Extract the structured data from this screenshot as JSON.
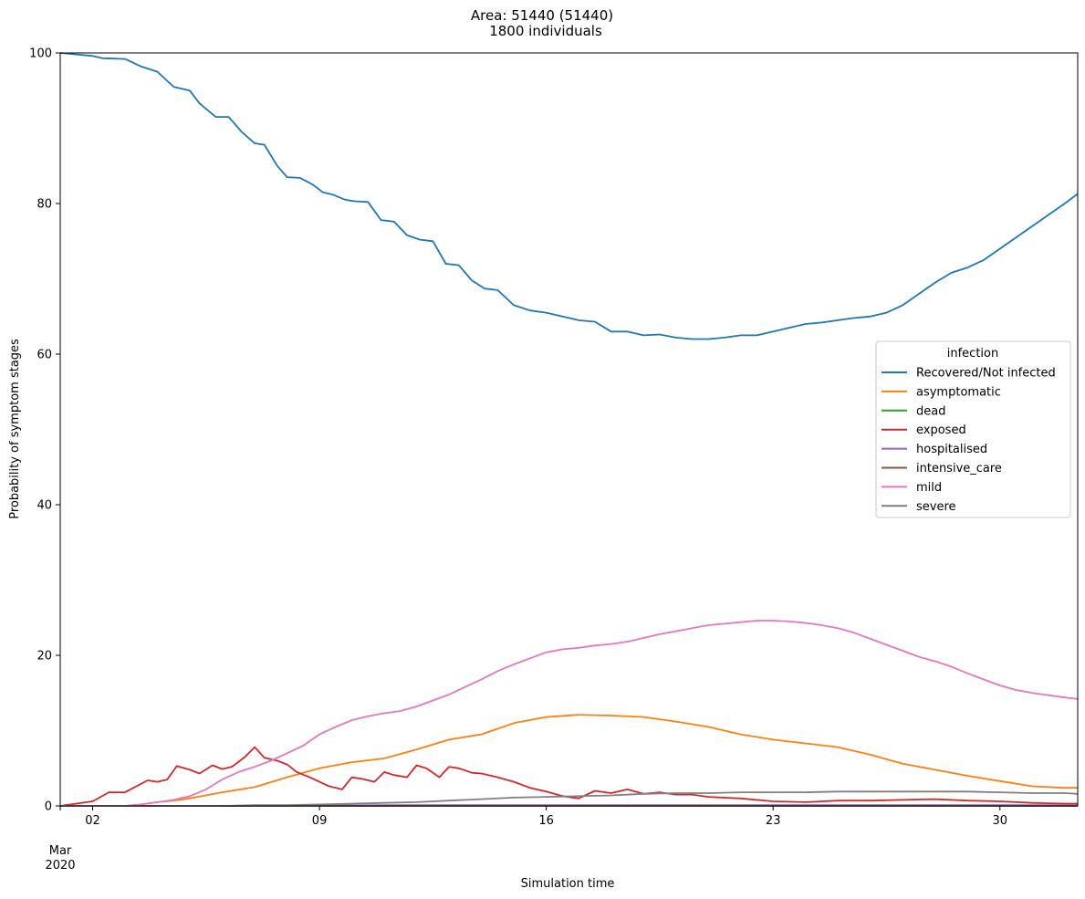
{
  "chart_data": {
    "type": "line",
    "title_line1": "Area: 51440 (51440)",
    "title_line2": "1800 individuals",
    "xlabel": "Simulation time",
    "ylabel": "Probability of symptom stages",
    "xlim": [
      0,
      31.4
    ],
    "ylim": [
      0,
      100
    ],
    "grid": false,
    "legend_placement": "center-right",
    "legend_title": "infection",
    "xtick_values": [
      1,
      8,
      15,
      22,
      29
    ],
    "xtick_labels": [
      "02",
      "09",
      "16",
      "23",
      "30"
    ],
    "xaxis_secondary_label_1": "Mar",
    "xaxis_secondary_label_2": "2020",
    "ytick_values": [
      0,
      20,
      40,
      60,
      80,
      100
    ],
    "ytick_labels": [
      "0",
      "20",
      "40",
      "60",
      "80",
      "100"
    ],
    "x_note": "x values are days elapsed since 01 Mar 2020",
    "series": [
      {
        "name": "Recovered/Not infected",
        "color": "#1f77b4",
        "x": [
          0,
          1,
          1.3,
          2,
          2.5,
          3,
          3.5,
          4,
          4.3,
          4.8,
          5.2,
          5.6,
          6,
          6.3,
          6.7,
          7,
          7.4,
          7.8,
          8.1,
          8.4,
          8.8,
          9.1,
          9.5,
          9.9,
          10.3,
          10.7,
          11.1,
          11.5,
          11.9,
          12.3,
          12.7,
          13.1,
          13.5,
          14,
          14.5,
          15,
          15.5,
          16,
          16.5,
          17,
          17.5,
          18,
          18.5,
          19,
          19.5,
          20,
          20.5,
          21,
          21.5,
          22,
          22.5,
          23,
          23.5,
          24,
          24.5,
          25,
          25.5,
          26,
          26.5,
          27,
          27.5,
          28,
          28.5,
          29,
          29.5,
          30,
          30.5,
          31,
          31.4
        ],
        "y": [
          100,
          99.6,
          99.3,
          99.2,
          98.2,
          97.5,
          95.5,
          95,
          93.3,
          91.5,
          91.5,
          89.5,
          88,
          87.8,
          85,
          83.5,
          83.4,
          82.5,
          81.5,
          81.2,
          80.5,
          80.3,
          80.2,
          77.8,
          77.6,
          75.8,
          75.2,
          75,
          72,
          71.8,
          69.8,
          68.7,
          68.5,
          66.5,
          65.8,
          65.5,
          65,
          64.5,
          64.3,
          63,
          63,
          62.5,
          62.6,
          62.2,
          62,
          62,
          62.2,
          62.5,
          62.5,
          63,
          63.5,
          64,
          64.2,
          64.5,
          64.8,
          65,
          65.5,
          66.5,
          68,
          69.5,
          70.8,
          71.5,
          72.5,
          74,
          75.5,
          77,
          78.5,
          80,
          81.3
        ]
      },
      {
        "name": "asymptomatic",
        "color": "#ff7f0e",
        "x": [
          0,
          1,
          2,
          2.5,
          3,
          3.5,
          4,
          5,
          6,
          7,
          8,
          9,
          10,
          11,
          12,
          13,
          14,
          15,
          16,
          17,
          18,
          19,
          20,
          21,
          22,
          23,
          24,
          25,
          26,
          27,
          28,
          29,
          30,
          31,
          31.4
        ],
        "y": [
          0,
          0,
          0,
          0.2,
          0.5,
          0.7,
          1,
          1.8,
          2.5,
          3.8,
          5,
          5.8,
          6.3,
          7.5,
          8.8,
          9.5,
          11,
          11.8,
          12.1,
          12,
          11.8,
          11.2,
          10.5,
          9.5,
          8.8,
          8.3,
          7.8,
          6.8,
          5.6,
          4.8,
          4,
          3.3,
          2.6,
          2.4,
          2.4
        ]
      },
      {
        "name": "dead",
        "color": "#2ca02c",
        "x": [
          0,
          31.4
        ],
        "y": [
          0,
          0
        ]
      },
      {
        "name": "exposed",
        "color": "#d62728",
        "x": [
          0,
          0.5,
          1,
          1.5,
          2,
          2.3,
          2.7,
          3,
          3.3,
          3.6,
          4,
          4.3,
          4.7,
          5,
          5.3,
          5.7,
          6,
          6.3,
          6.7,
          7,
          7.3,
          7.7,
          8,
          8.3,
          8.7,
          9,
          9.3,
          9.7,
          10,
          10.3,
          10.7,
          11,
          11.3,
          11.7,
          12,
          12.3,
          12.7,
          13,
          13.5,
          14,
          14.5,
          15,
          15.5,
          16,
          16.5,
          17,
          17.5,
          18,
          18.5,
          19,
          19.5,
          20,
          21,
          22,
          23,
          24,
          25,
          26,
          27,
          28,
          29,
          30,
          31,
          31.4
        ],
        "y": [
          0,
          0.3,
          0.6,
          1.8,
          1.8,
          2.5,
          3.4,
          3.2,
          3.5,
          5.3,
          4.8,
          4.3,
          5.4,
          4.9,
          5.2,
          6.5,
          7.8,
          6.4,
          6,
          5.5,
          4.5,
          3.8,
          3.2,
          2.6,
          2.2,
          3.8,
          3.6,
          3.2,
          4.5,
          4.1,
          3.8,
          5.4,
          5,
          3.8,
          5.2,
          5,
          4.4,
          4.3,
          3.8,
          3.2,
          2.4,
          1.9,
          1.3,
          1,
          2,
          1.7,
          2.2,
          1.6,
          1.8,
          1.5,
          1.5,
          1.2,
          1,
          0.6,
          0.5,
          0.7,
          0.7,
          0.8,
          0.9,
          0.7,
          0.6,
          0.4,
          0.3,
          0.3
        ]
      },
      {
        "name": "hospitalised",
        "color": "#9467bd",
        "x": [
          0,
          5,
          10,
          15,
          20,
          25,
          31.4
        ],
        "y": [
          0,
          0,
          0.1,
          0.1,
          0.1,
          0.1,
          0.1
        ]
      },
      {
        "name": "intensive_care",
        "color": "#8c564b",
        "x": [
          0,
          31.4
        ],
        "y": [
          0,
          0
        ]
      },
      {
        "name": "mild",
        "color": "#e377c2",
        "x": [
          0,
          2,
          2.5,
          3,
          3.5,
          4,
          4.5,
          5,
          5.5,
          6,
          6.5,
          7,
          7.5,
          8,
          8.5,
          9,
          9.5,
          10,
          10.5,
          11,
          11.5,
          12,
          12.5,
          13,
          13.5,
          14,
          14.5,
          15,
          15.5,
          16,
          16.5,
          17,
          17.5,
          18,
          18.5,
          19,
          19.5,
          20,
          20.5,
          21,
          21.5,
          22,
          22.5,
          23,
          23.5,
          24,
          24.5,
          25,
          25.5,
          26,
          26.5,
          27,
          27.5,
          28,
          28.5,
          29,
          29.5,
          30,
          30.5,
          31,
          31.4
        ],
        "y": [
          0,
          0,
          0.2,
          0.5,
          0.8,
          1.3,
          2.2,
          3.5,
          4.5,
          5.2,
          6,
          7,
          8,
          9.5,
          10.5,
          11.4,
          11.9,
          12.3,
          12.6,
          13.2,
          14,
          14.8,
          15.8,
          16.8,
          17.9,
          18.8,
          19.6,
          20.4,
          20.8,
          21,
          21.3,
          21.5,
          21.8,
          22.3,
          22.8,
          23.2,
          23.6,
          24,
          24.2,
          24.4,
          24.6,
          24.6,
          24.5,
          24.3,
          24,
          23.6,
          23,
          22.2,
          21.4,
          20.6,
          19.8,
          19.2,
          18.5,
          17.6,
          16.8,
          16,
          15.4,
          15,
          14.7,
          14.4,
          14.2
        ]
      },
      {
        "name": "severe",
        "color": "#7f7f7f",
        "x": [
          0,
          5,
          6,
          7,
          8,
          9,
          10,
          11,
          12,
          13,
          14,
          15,
          16,
          17,
          18,
          19,
          20,
          21,
          22,
          23,
          24,
          25,
          26,
          27,
          28,
          29,
          30,
          31,
          31.4
        ],
        "y": [
          0,
          0,
          0.1,
          0.1,
          0.2,
          0.3,
          0.4,
          0.5,
          0.7,
          0.9,
          1.1,
          1.2,
          1.3,
          1.4,
          1.6,
          1.7,
          1.7,
          1.8,
          1.8,
          1.8,
          1.9,
          1.9,
          1.9,
          1.9,
          1.9,
          1.8,
          1.7,
          1.7,
          1.6
        ]
      }
    ]
  }
}
